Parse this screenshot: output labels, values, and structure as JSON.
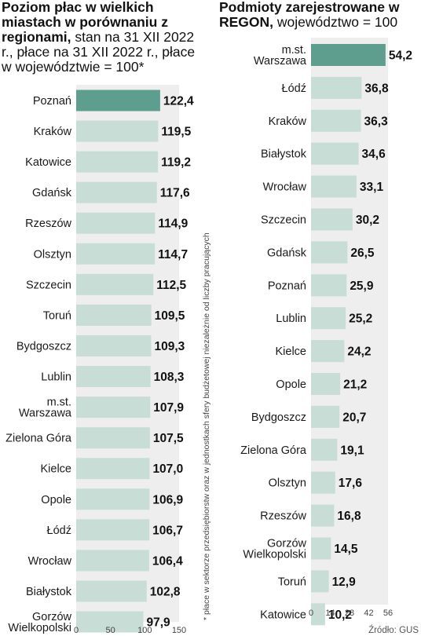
{
  "left_chart": {
    "title_bold": "Poziom płac w wielkich miastach w porównaniu z regionami,",
    "title_rest": " stan na 31 XII 2022 r., płace na 31 XII 2022 r., płace w województwie = 100*",
    "footnote": "* płace w sektorze przedsiębiorstw oraz w jednostkach sfery budżetowej niezależnie od liczby pracujących"
  },
  "right_chart": {
    "title_bold": "Podmioty zarejestrowane w REGON,",
    "title_rest": " województwo = 100"
  },
  "source": "Źródło: GUS",
  "colors": {
    "bar": "#c8ddd6",
    "highlight": "#5d9e8e",
    "panel": "#eeeeee"
  },
  "chart_data": [
    {
      "type": "bar",
      "orientation": "horizontal",
      "title": "Poziom płac w wielkich miastach w porównaniu z regionami, stan na 31 XII 2022 r., płace na 31 XII 2022 r., płace w województwie = 100*",
      "categories": [
        "Poznań",
        "Kraków",
        "Katowice",
        "Gdańsk",
        "Rzeszów",
        "Olsztyn",
        "Szczecin",
        "Toruń",
        "Bydgoszcz",
        "Lublin",
        "m.st.\nWarszawa",
        "Zielona Góra",
        "Kielce",
        "Opole",
        "Łódź",
        "Wrocław",
        "Białystok",
        "Gorzów\nWielkopolski"
      ],
      "values": [
        122.4,
        119.5,
        119.2,
        117.6,
        114.9,
        114.7,
        112.5,
        109.5,
        109.3,
        108.3,
        107.9,
        107.5,
        107.0,
        106.9,
        106.7,
        106.4,
        102.8,
        97.9
      ],
      "value_labels": [
        "122,4",
        "119,5",
        "119,2",
        "117,6",
        "114,9",
        "114,7",
        "112,5",
        "109,5",
        "109,3",
        "108,3",
        "107,9",
        "107,5",
        "107,0",
        "106,9",
        "106,7",
        "106,4",
        "102,8",
        "97,9"
      ],
      "highlight": "Poznań",
      "xlim": [
        0,
        150
      ],
      "ticks": [
        0,
        50,
        100,
        150
      ]
    },
    {
      "type": "bar",
      "orientation": "horizontal",
      "title": "Podmioty zarejestrowane w REGON, województwo = 100",
      "categories": [
        "m.st.\nWarszawa",
        "Łódź",
        "Kraków",
        "Białystok",
        "Wrocław",
        "Szczecin",
        "Gdańsk",
        "Poznań",
        "Lublin",
        "Kielce",
        "Opole",
        "Bydgoszcz",
        "Zielona Góra",
        "Olsztyn",
        "Rzeszów",
        "Gorzów\nWielkopolski",
        "Toruń",
        "Katowice"
      ],
      "values": [
        54.2,
        36.8,
        36.3,
        34.6,
        33.1,
        30.2,
        26.5,
        25.9,
        25.2,
        24.2,
        21.2,
        20.7,
        19.1,
        17.6,
        16.8,
        14.5,
        12.9,
        10.2
      ],
      "value_labels": [
        "54,2",
        "36,8",
        "36,3",
        "34,6",
        "33,1",
        "30,2",
        "26,5",
        "25,9",
        "25,2",
        "24,2",
        "21,2",
        "20,7",
        "19,1",
        "17,6",
        "16,8",
        "14,5",
        "12,9",
        "10,2"
      ],
      "highlight": "m.st.\nWarszawa",
      "xlim": [
        0,
        56
      ],
      "ticks": [
        0,
        14,
        28,
        42,
        56
      ]
    }
  ]
}
